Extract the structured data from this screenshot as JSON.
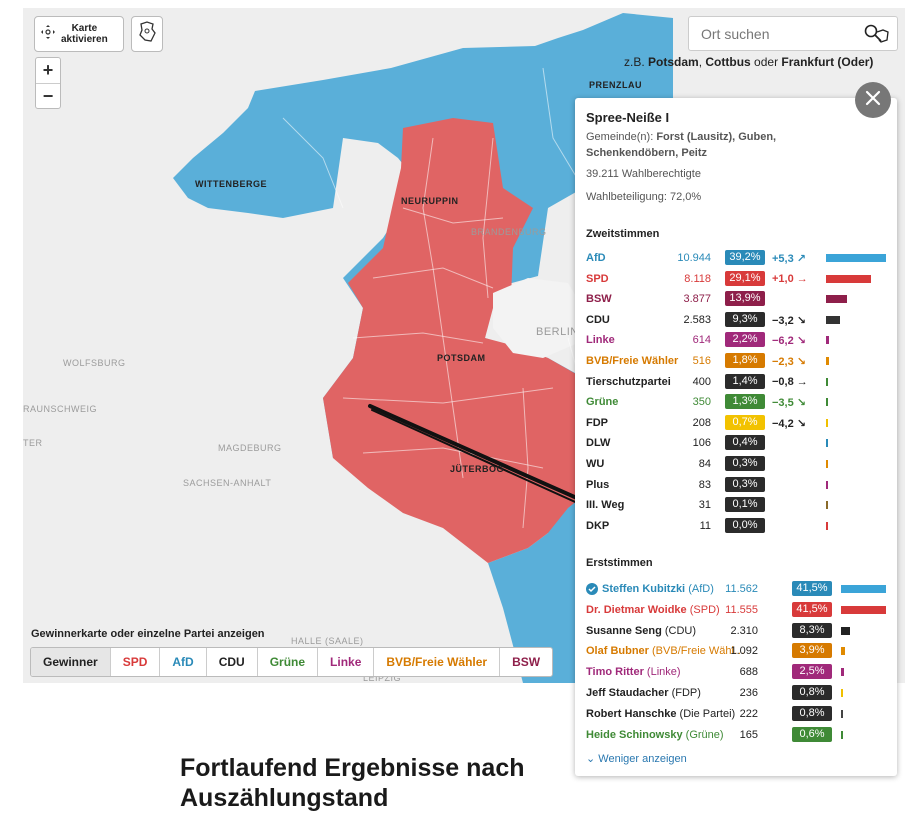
{
  "map": {
    "activate_label_1": "Karte",
    "activate_label_2": "aktivieren",
    "zoom_in": "+",
    "zoom_out": "−",
    "search_placeholder": "Ort suchen",
    "hint_prefix": "z.B.",
    "hint_city1": "Potsdam",
    "hint_city2": "Cottbus",
    "hint_or": "oder",
    "hint_city3": "Frankfurt (Oder)",
    "labels": {
      "prenzlau": "PRENZLAU",
      "wittenberge": "WITTENBERGE",
      "neuruppin": "NEURUPPIN",
      "brandenburg": "BRANDENBURG",
      "berlin": "BERLIN",
      "potsdam": "POTSDAM",
      "wolfsburg": "WOLFSBURG",
      "braunschweig": "RAUNSCHWEIG",
      "magdeburg": "MAGDEBURG",
      "sachsen_anhalt": "SACHSEN-ANHALT",
      "jueterbog": "JÜTERBOG",
      "halle": "HALLE (SAALE)",
      "leipzig": "LEIPZIG",
      "ter": "TER"
    },
    "legend_title": "Gewinnerkarte oder einzelne Partei anzeigen",
    "tabs": [
      {
        "label": "Gewinner",
        "color": "#222222"
      },
      {
        "label": "SPD",
        "color": "#d83a3a"
      },
      {
        "label": "AfD",
        "color": "#2a8ab8"
      },
      {
        "label": "CDU",
        "color": "#222222"
      },
      {
        "label": "Grüne",
        "color": "#3f8a36"
      },
      {
        "label": "Linke",
        "color": "#a0297a"
      },
      {
        "label": "BVB/Freie Wähler",
        "color": "#d67a00"
      },
      {
        "label": "BSW",
        "color": "#8e1f4a"
      }
    ],
    "colors": {
      "afd": "#5aafd9",
      "spd": "#e06464",
      "base": "#eeeeee"
    }
  },
  "panel": {
    "title": "Spree-Neiße I",
    "gemeinden_label": "Gemeinde(n):",
    "gemeinden": "Forst (Lausitz), Guben, Schenkendöbern, Peitz",
    "wahlberechtigte": "39.211 Wahlberechtigte",
    "wahlbeteiligung": "Wahlbeteiligung: 72,0%",
    "zweit_title": "Zweitstimmen",
    "zweit": [
      {
        "name": "AfD",
        "votes": "10.944",
        "pct": "39,2%",
        "pctv": 39.2,
        "diff": "+5,3 ↗",
        "color": "#2a8ab8",
        "bar": "#3ba4d8",
        "diffcolor": "#2a8ab8"
      },
      {
        "name": "SPD",
        "votes": "8.118",
        "pct": "29,1%",
        "pctv": 29.1,
        "diff": "+1,0 →",
        "color": "#d83a3a",
        "bar": "#d83a3a",
        "diffcolor": "#d83a3a"
      },
      {
        "name": "BSW",
        "votes": "3.877",
        "pct": "13,9%",
        "pctv": 13.9,
        "diff": "",
        "color": "#8e1f4a",
        "bar": "#8e1f4a",
        "diffcolor": "#8e1f4a"
      },
      {
        "name": "CDU",
        "votes": "2.583",
        "pct": "9,3%",
        "pctv": 9.3,
        "diff": "−3,2 ↘",
        "color": "#222222",
        "bar": "#333333",
        "diffcolor": "#222222"
      },
      {
        "name": "Linke",
        "votes": "614",
        "pct": "2,2%",
        "pctv": 2.2,
        "diff": "−6,2 ↘",
        "color": "#a0297a",
        "bar": "#a0297a",
        "diffcolor": "#a0297a"
      },
      {
        "name": "BVB/Freie Wähler",
        "votes": "516",
        "pct": "1,8%",
        "pctv": 1.8,
        "diff": "−2,3 ↘",
        "color": "#d67a00",
        "bar": "#e08a00",
        "diffcolor": "#d67a00"
      },
      {
        "name": "Tierschutzpartei",
        "votes": "400",
        "pct": "1,4%",
        "pctv": 1.4,
        "diff": "−0,8 →",
        "color": "#222222",
        "bar": "#3f8a36",
        "diffcolor": "#222222"
      },
      {
        "name": "Grüne",
        "votes": "350",
        "pct": "1,3%",
        "pctv": 1.3,
        "diff": "−3,5 ↘",
        "color": "#3f8a36",
        "bar": "#3f8a36",
        "diffcolor": "#3f8a36"
      },
      {
        "name": "FDP",
        "votes": "208",
        "pct": "0,7%",
        "pctv": 0.7,
        "diff": "−4,2 ↘",
        "color": "#222222",
        "bar": "#f0c000",
        "diffcolor": "#222222",
        "pctbg": "#f2c200"
      },
      {
        "name": "DLW",
        "votes": "106",
        "pct": "0,4%",
        "pctv": 0.4,
        "diff": "",
        "color": "#222222",
        "bar": "#2a8ab8",
        "diffcolor": "#222222"
      },
      {
        "name": "WU",
        "votes": "84",
        "pct": "0,3%",
        "pctv": 0.3,
        "diff": "",
        "color": "#222222",
        "bar": "#e08a00",
        "diffcolor": "#222222"
      },
      {
        "name": "Plus",
        "votes": "83",
        "pct": "0,3%",
        "pctv": 0.3,
        "diff": "",
        "color": "#222222",
        "bar": "#a0297a",
        "diffcolor": "#222222"
      },
      {
        "name": "III. Weg",
        "votes": "31",
        "pct": "0,1%",
        "pctv": 0.1,
        "diff": "",
        "color": "#222222",
        "bar": "#8a6a2a",
        "diffcolor": "#222222"
      },
      {
        "name": "DKP",
        "votes": "11",
        "pct": "0,0%",
        "pctv": 0.0,
        "diff": "",
        "color": "#222222",
        "bar": "#d83a3a",
        "diffcolor": "#222222"
      }
    ],
    "erst_title": "Erststimmen",
    "erst": [
      {
        "name": "Steffen Kubitzki",
        "party": "(AfD)",
        "votes": "11.562",
        "pct": "41,5%",
        "pctv": 41.5,
        "color": "#2a8ab8",
        "bar": "#3ba4d8",
        "winner": true
      },
      {
        "name": "Dr. Dietmar Woidke",
        "party": "(SPD)",
        "votes": "11.555",
        "pct": "41,5%",
        "pctv": 41.5,
        "color": "#d83a3a",
        "bar": "#d83a3a",
        "winner": false
      },
      {
        "name": "Susanne Seng",
        "party": "(CDU)",
        "votes": "2.310",
        "pct": "8,3%",
        "pctv": 8.3,
        "color": "#222222",
        "bar": "#222222",
        "winner": false
      },
      {
        "name": "Olaf Bubner",
        "party": "(BVB/Freie Wähl…",
        "votes": "1.092",
        "pct": "3,9%",
        "pctv": 3.9,
        "color": "#d67a00",
        "bar": "#e08a00",
        "winner": false
      },
      {
        "name": "Timo Ritter",
        "party": "(Linke)",
        "votes": "688",
        "pct": "2,5%",
        "pctv": 2.5,
        "color": "#a0297a",
        "bar": "#a0297a",
        "winner": false
      },
      {
        "name": "Jeff Staudacher",
        "party": "(FDP)",
        "votes": "236",
        "pct": "0,8%",
        "pctv": 0.8,
        "color": "#222222",
        "bar": "#f0c000",
        "winner": false
      },
      {
        "name": "Robert Hanschke",
        "party": "(Die Partei)",
        "votes": "222",
        "pct": "0,8%",
        "pctv": 0.8,
        "color": "#222222",
        "bar": "#444444",
        "winner": false
      },
      {
        "name": "Heide Schinowsky",
        "party": "(Grüne)",
        "votes": "165",
        "pct": "0,6%",
        "pctv": 0.6,
        "color": "#3f8a36",
        "bar": "#3f8a36",
        "winner": false
      }
    ],
    "less_label": "Weniger anzeigen"
  },
  "article": {
    "heading_1": "Fortlaufend Ergebnisse nach",
    "heading_2": "Auszählungstand"
  }
}
